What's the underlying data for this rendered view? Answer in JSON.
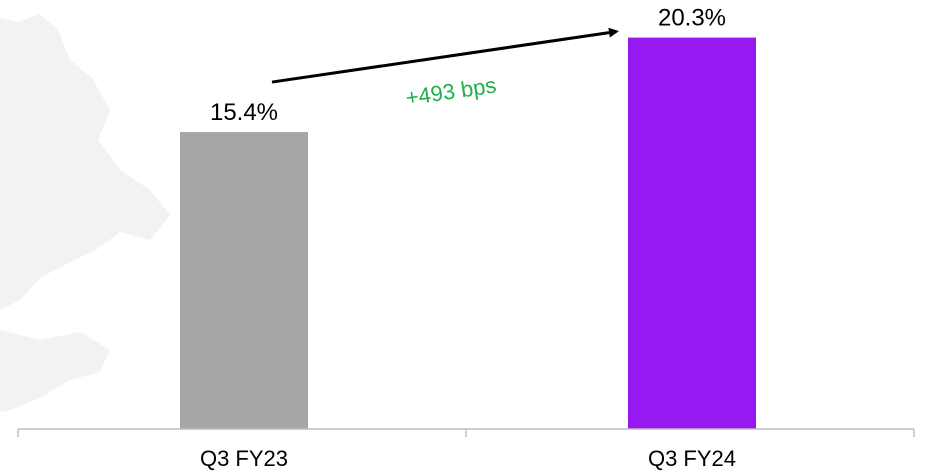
{
  "chart_data": {
    "type": "bar",
    "categories": [
      "Q3 FY23",
      "Q3 FY24"
    ],
    "values": [
      15.4,
      20.3
    ],
    "data_labels": [
      "15.4%",
      "20.3%"
    ],
    "bar_colors": [
      "#a6a6a6",
      "#9519f0"
    ],
    "title": "",
    "xlabel": "",
    "ylabel": "",
    "ylim": [
      0,
      22.25
    ],
    "grid": false,
    "legend": "none",
    "annotation": {
      "text": "+493 bps",
      "color": "#1fb04a",
      "from_category": 0,
      "to_category": 1
    }
  },
  "colors": {
    "axis": "#bfbfbf",
    "arrow": "#000000",
    "map_shape": "#ececec"
  }
}
